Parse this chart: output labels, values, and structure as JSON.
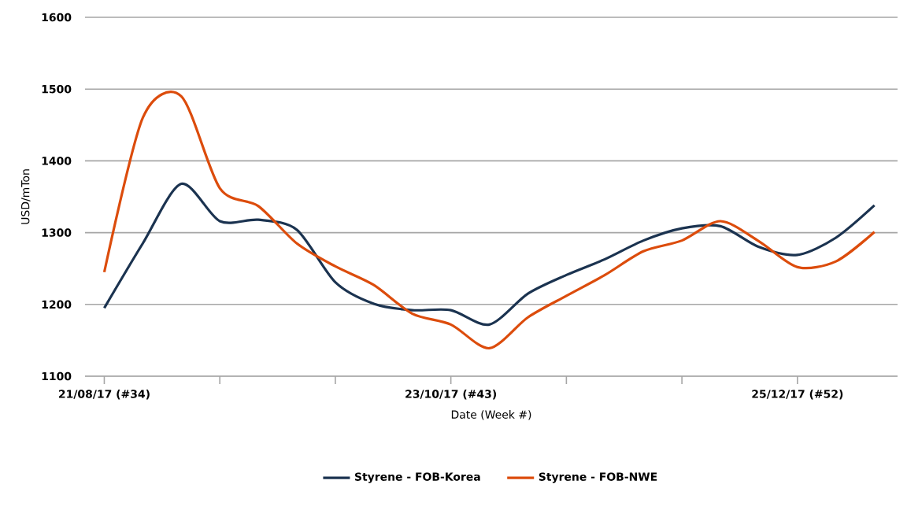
{
  "chart_data": {
    "type": "line",
    "xlabel": "Date (Week #)",
    "ylabel": "USD/mTon",
    "categories": [
      "21/08/17 (#34)",
      null,
      null,
      null,
      null,
      null,
      null,
      null,
      null,
      "23/10/17 (#43)",
      null,
      null,
      null,
      null,
      null,
      null,
      null,
      null,
      "25/12/17 (#52)",
      null,
      null
    ],
    "ylim": [
      1100,
      1600
    ],
    "yticks": [
      1100,
      1200,
      1300,
      1400,
      1500,
      1600
    ],
    "grid": "y",
    "legend": "bottom",
    "marker": "none",
    "line_style": "solid",
    "series": [
      {
        "name": "Styrene - FOB-Korea",
        "color": "#1b3350",
        "values": [
          1195,
          1285,
          1368,
          1316,
          1318,
          1304,
          1231,
          1201,
          1192,
          1192,
          1172,
          1215,
          1241,
          1263,
          1289,
          1306,
          1309,
          1280,
          1269,
          1293,
          1338
        ]
      },
      {
        "name": "Styrene - FOB-NWE",
        "color": "#dc4c0c",
        "values": [
          1245,
          1460,
          1490,
          1362,
          1337,
          1285,
          1253,
          1227,
          1187,
          1172,
          1139,
          1182,
          1212,
          1241,
          1274,
          1289,
          1316,
          1288,
          1252,
          1260,
          1301
        ]
      }
    ]
  }
}
